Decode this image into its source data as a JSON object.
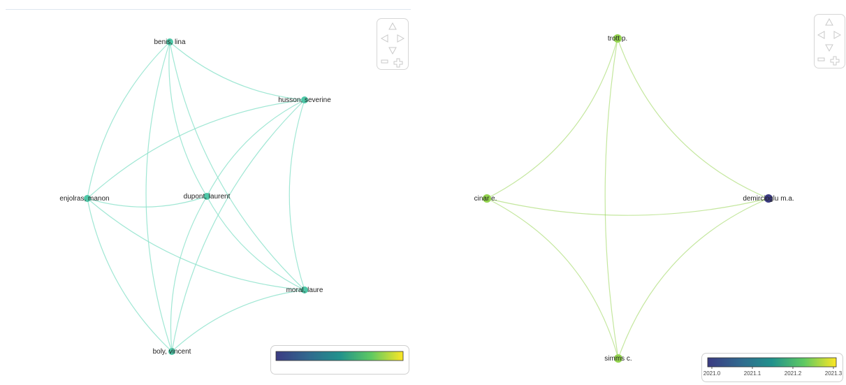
{
  "colors": {
    "left_edge": "#8fe3cc",
    "left_node": "#4fc8a8",
    "viridis": [
      "#440154",
      "#3b528b",
      "#21918c",
      "#5ec962",
      "#fde725"
    ]
  },
  "left_network": {
    "nodes": [
      {
        "id": "benis",
        "label": "benis, lina"
      },
      {
        "id": "husson",
        "label": "husson, severine"
      },
      {
        "id": "enjolras",
        "label": "enjolras, manon"
      },
      {
        "id": "dupont",
        "label": "dupont, laurent"
      },
      {
        "id": "moral",
        "label": "moral, laure"
      },
      {
        "id": "boly",
        "label": "boly, vincent"
      }
    ],
    "edges": [
      [
        "benis",
        "husson"
      ],
      [
        "benis",
        "enjolras"
      ],
      [
        "benis",
        "dupont"
      ],
      [
        "benis",
        "moral"
      ],
      [
        "benis",
        "boly"
      ],
      [
        "husson",
        "enjolras"
      ],
      [
        "husson",
        "dupont"
      ],
      [
        "husson",
        "moral"
      ],
      [
        "husson",
        "boly"
      ],
      [
        "enjolras",
        "dupont"
      ],
      [
        "enjolras",
        "moral"
      ],
      [
        "enjolras",
        "boly"
      ],
      [
        "dupont",
        "moral"
      ],
      [
        "dupont",
        "boly"
      ],
      [
        "moral",
        "boly"
      ]
    ]
  },
  "right_network": {
    "nodes": [
      {
        "id": "trott",
        "label": "trott p.",
        "year": 2021.25
      },
      {
        "id": "cinar",
        "label": "cinar e.",
        "year": 2021.25
      },
      {
        "id": "demircioglu",
        "label": "demircioglu m.a.",
        "year": 2021.0
      },
      {
        "id": "simms",
        "label": "simms c.",
        "year": 2021.25
      }
    ],
    "edges": [
      [
        "trott",
        "cinar"
      ],
      [
        "trott",
        "demircioglu"
      ],
      [
        "trott",
        "simms"
      ],
      [
        "cinar",
        "demircioglu"
      ],
      [
        "cinar",
        "simms"
      ],
      [
        "simms",
        "demircioglu"
      ]
    ]
  },
  "right_legend": {
    "ticks": [
      "2021.0",
      "2021.1",
      "2021.2",
      "2021.3"
    ]
  }
}
